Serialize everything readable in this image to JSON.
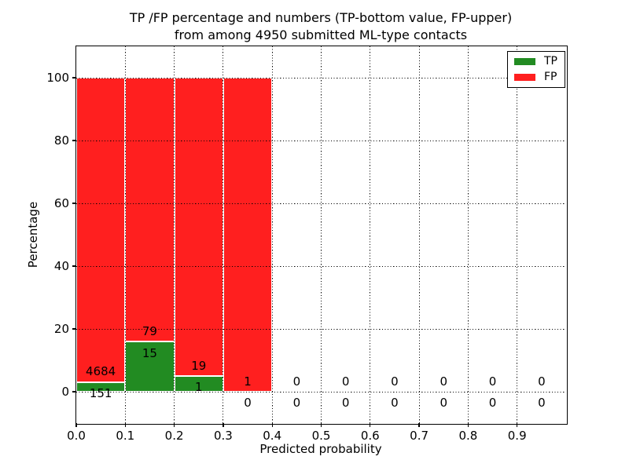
{
  "title": {
    "line1": "TP /FP percentage and numbers (TP-bottom value, FP-upper)",
    "line2": "from among 4950 submitted ML-type contacts"
  },
  "chart_data": {
    "type": "bar",
    "stacked": true,
    "title": "TP /FP percentage and numbers (TP-bottom value, FP-upper) from among 4950 submitted ML-type contacts",
    "xlabel": "Predicted probability",
    "ylabel": "Percentage",
    "xlim": [
      0.0,
      1.0
    ],
    "ylim": [
      -10,
      110
    ],
    "xticks": [
      "0.0",
      "0.1",
      "0.2",
      "0.3",
      "0.4",
      "0.5",
      "0.6",
      "0.7",
      "0.8",
      "0.9"
    ],
    "yticks": [
      0,
      20,
      40,
      60,
      80,
      100
    ],
    "grid": "dotted",
    "legend": {
      "position": "upper right",
      "entries": [
        {
          "label": "TP",
          "color": "#228b22"
        },
        {
          "label": "FP",
          "color": "#ff1f1f"
        }
      ]
    },
    "bins": [
      {
        "range": [
          0.0,
          0.1
        ],
        "tp": 151,
        "fp": 4684,
        "tp_pct": 3.12,
        "fp_pct": 96.88
      },
      {
        "range": [
          0.1,
          0.2
        ],
        "tp": 15,
        "fp": 79,
        "tp_pct": 15.96,
        "fp_pct": 84.04
      },
      {
        "range": [
          0.2,
          0.3
        ],
        "tp": 1,
        "fp": 19,
        "tp_pct": 5.0,
        "fp_pct": 95.0
      },
      {
        "range": [
          0.3,
          0.4
        ],
        "tp": 0,
        "fp": 1,
        "tp_pct": 0.0,
        "fp_pct": 100.0
      },
      {
        "range": [
          0.4,
          0.5
        ],
        "tp": 0,
        "fp": 0,
        "tp_pct": 0.0,
        "fp_pct": 0.0
      },
      {
        "range": [
          0.5,
          0.6
        ],
        "tp": 0,
        "fp": 0,
        "tp_pct": 0.0,
        "fp_pct": 0.0
      },
      {
        "range": [
          0.6,
          0.7
        ],
        "tp": 0,
        "fp": 0,
        "tp_pct": 0.0,
        "fp_pct": 0.0
      },
      {
        "range": [
          0.7,
          0.8
        ],
        "tp": 0,
        "fp": 0,
        "tp_pct": 0.0,
        "fp_pct": 0.0
      },
      {
        "range": [
          0.8,
          0.9
        ],
        "tp": 0,
        "fp": 0,
        "tp_pct": 0.0,
        "fp_pct": 0.0
      },
      {
        "range": [
          0.9,
          1.0
        ],
        "tp": 0,
        "fp": 0,
        "tp_pct": 0.0,
        "fp_pct": 0.0
      }
    ]
  },
  "colors": {
    "tp_green": "#228b22",
    "fp_red": "#ff1f1f",
    "background": "#ffffff",
    "frame": "#000000"
  }
}
